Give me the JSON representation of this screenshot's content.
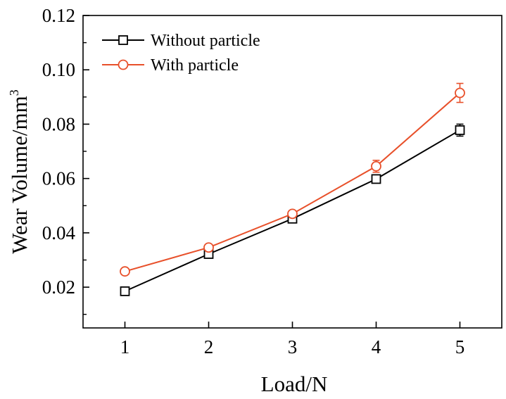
{
  "chart_data": {
    "type": "line",
    "xlabel": "Load/N",
    "ylabel": "Wear Volume/mm",
    "ylabel_sup": "3",
    "x": [
      1,
      2,
      3,
      4,
      5
    ],
    "xlim": [
      0.5,
      5.5
    ],
    "ylim": [
      0.005,
      0.12
    ],
    "xticks": [
      "1",
      "2",
      "3",
      "4",
      "5"
    ],
    "yticks": [
      "0.02",
      "0.04",
      "0.06",
      "0.08",
      "0.10",
      "0.12"
    ],
    "ytick_values": [
      0.02,
      0.04,
      0.06,
      0.08,
      0.1,
      0.12
    ],
    "grid": false,
    "legend_position": "top-left",
    "series": [
      {
        "name": "Without particle",
        "marker": "square",
        "color": "#000000",
        "values": [
          0.0185,
          0.0322,
          0.0452,
          0.0598,
          0.0778
        ],
        "errors": [
          0.001,
          0.0012,
          0.001,
          0.0012,
          0.0022
        ]
      },
      {
        "name": "With particle",
        "marker": "circle",
        "color": "#e8502a",
        "values": [
          0.0258,
          0.0346,
          0.047,
          0.0645,
          0.0915
        ],
        "errors": [
          0.0008,
          0.0012,
          0.0012,
          0.0022,
          0.0035
        ]
      }
    ]
  }
}
